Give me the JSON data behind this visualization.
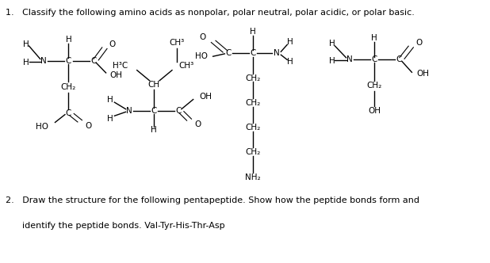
{
  "background_color": "#ffffff",
  "fig_width": 6.18,
  "fig_height": 3.32,
  "dpi": 100,
  "title1": "1.   Classify the following amino acids as nonpolar, polar neutral, polar acidic, or polar basic.",
  "title2_line1": "2.   Draw the structure for the following pentapeptide. Show how the peptide bonds form and",
  "title2_line2": "      identify the peptide bonds. Val-Tyr-His-Thr-Asp",
  "fontsize": 7.5,
  "title_fontsize": 8.0
}
